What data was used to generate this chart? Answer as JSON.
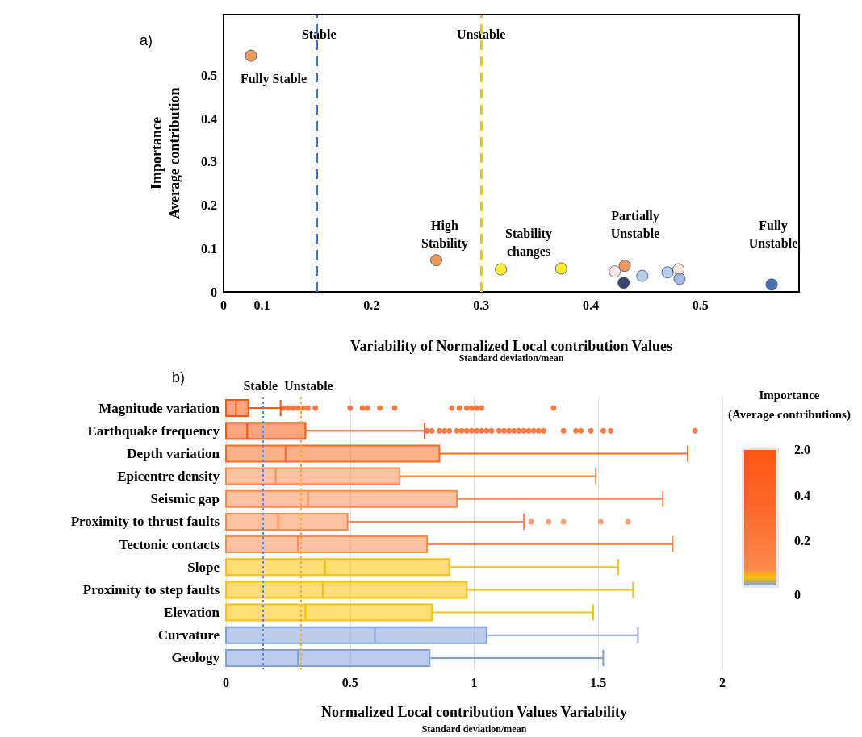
{
  "chart_data": [
    {
      "type": "scatter",
      "title": "a)",
      "xlabel": "Variability of Normalized Local contribution Values",
      "ylabel": "Importance\nAverage contribution",
      "x": [
        0.09,
        0.259,
        0.318,
        0.373,
        0.422,
        0.431,
        0.43,
        0.447,
        0.47,
        0.48,
        0.481,
        0.565
      ],
      "values": [
        0.545,
        0.073,
        0.052,
        0.054,
        0.047,
        0.06,
        0.021,
        0.037,
        0.045,
        0.052,
        0.03,
        0.017
      ],
      "colors": [
        "#ed7d31",
        "#ed7d31",
        "#ffe600",
        "#ffe600",
        "#fbe5d6",
        "#ed7d31",
        "#0a1a4a",
        "#a9bfe6",
        "#a9bfe6",
        "#fbe5d6",
        "#8faadc",
        "#1f4e9c"
      ],
      "marker": "circle",
      "xlim": [
        0.065,
        0.59
      ],
      "xticks": [
        {
          "value": 0.065,
          "label": "0"
        },
        0.1,
        0.2,
        0.3,
        0.4,
        0.5
      ],
      "ylim": [
        0,
        0.64
      ],
      "yticks": [
        0,
        0.1,
        0.2,
        0.3,
        0.4,
        0.5
      ],
      "grid": false,
      "ref_lines": [
        {
          "axis": "x",
          "value": 0.152,
          "label": "Stable",
          "color": "#4472c4",
          "line_style": "dashed"
        },
        {
          "axis": "x",
          "value": 0.3,
          "label": "Unstable",
          "color": "#ffc000",
          "line_style": "dashed"
        }
      ],
      "annotations": [
        "Standard deviation/mean",
        "Fully Stable",
        "High\nStability",
        "Stability\nchanges",
        "Partially\nUnstable",
        "Fully\nUnstable"
      ]
    },
    {
      "type": "box",
      "title": "b)",
      "orientation": "horizontal",
      "xlabel": "Normalized Local contribution Values Variability",
      "categories": [
        "Magnitude variation",
        "Earthquake frequency",
        "Depth variation",
        "Epicentre density",
        "Seismic gap",
        "Proximity to thrust faults",
        "Tectonic contacts",
        "Slope",
        "Proximity to step faults",
        "Elevation",
        "Curvature",
        "Geology"
      ],
      "colors": [
        "#ff5511",
        "#ff5511",
        "#fa6a28",
        "#f98a4c",
        "#f98a4c",
        "#f98a4c",
        "#f98a4c",
        "#ffc000",
        "#ffc000",
        "#ffc000",
        "#7f9fd8",
        "#7f9fd8"
      ],
      "boxes": [
        {
          "low": 0,
          "q1": 0,
          "median": 0.04,
          "q3": 0.09,
          "high": 0.22,
          "outliers": [
            0.23,
            0.25,
            0.27,
            0.29,
            0.31,
            0.33,
            0.36,
            0.5,
            0.55,
            0.57,
            0.62,
            0.68,
            0.91,
            0.94,
            0.97,
            0.99,
            1.01,
            1.03,
            1.32
          ]
        },
        {
          "low": 0,
          "q1": 0,
          "median": 0.085,
          "q3": 0.32,
          "high": 0.8,
          "outliers": [
            0.81,
            0.83,
            0.86,
            0.88,
            0.9,
            0.93,
            0.95,
            0.97,
            0.99,
            1.01,
            1.03,
            1.05,
            1.07,
            1.1,
            1.12,
            1.14,
            1.16,
            1.18,
            1.2,
            1.22,
            1.24,
            1.26,
            1.28,
            1.36,
            1.41,
            1.43,
            1.47,
            1.52,
            1.55,
            1.89
          ]
        },
        {
          "low": 0,
          "q1": 0,
          "median": 0.24,
          "q3": 0.86,
          "high": 1.86
        },
        {
          "low": 0,
          "q1": 0,
          "median": 0.2,
          "q3": 0.7,
          "high": 1.49
        },
        {
          "low": 0,
          "q1": 0,
          "median": 0.33,
          "q3": 0.93,
          "high": 1.76
        },
        {
          "low": 0,
          "q1": 0,
          "median": 0.21,
          "q3": 0.49,
          "high": 1.2,
          "outliers": [
            1.23,
            1.3,
            1.36,
            1.51,
            1.62
          ]
        },
        {
          "low": 0,
          "q1": 0,
          "median": 0.29,
          "q3": 0.81,
          "high": 1.8
        },
        {
          "low": 0,
          "q1": 0,
          "median": 0.4,
          "q3": 0.9,
          "high": 1.58
        },
        {
          "low": 0,
          "q1": 0,
          "median": 0.39,
          "q3": 0.97,
          "high": 1.64
        },
        {
          "low": 0,
          "q1": 0,
          "median": 0.32,
          "q3": 0.83,
          "high": 1.48
        },
        {
          "low": 0,
          "q1": 0,
          "median": 0.6,
          "q3": 1.05,
          "high": 1.66
        },
        {
          "low": 0,
          "q1": 0,
          "median": 0.29,
          "q3": 0.82,
          "high": 1.52
        }
      ],
      "xlim": [
        0,
        2
      ],
      "xticks": [
        0,
        0.5,
        1,
        1.5,
        2
      ],
      "grid": "x",
      "ref_lines": [
        {
          "axis": "x",
          "value": 0.15,
          "label": "Stable",
          "color": "#5b8bd6",
          "line_style": "dotted"
        },
        {
          "axis": "x",
          "value": 0.3,
          "label": "Unstable",
          "color": "#ffa53a",
          "line_style": "dotted"
        }
      ],
      "annotations": [
        "Standard deviation/mean",
        "Importance\n(Average contributions)",
        "2.0",
        "0.4",
        "0.2",
        "0"
      ]
    }
  ]
}
